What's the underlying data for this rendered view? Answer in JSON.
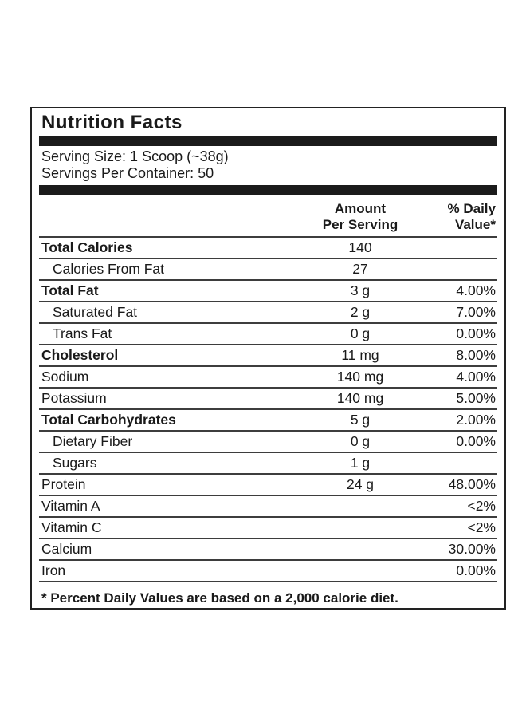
{
  "label": {
    "title": "Nutrition Facts",
    "serving_size": "Serving Size: 1 Scoop (~38g)",
    "servings_per_container": "Servings Per Container: 50",
    "columns": {
      "amount_header": "Amount\nPer Serving",
      "daily_value_header": "% Daily\nValue*"
    },
    "rows": [
      {
        "name": "Total Calories",
        "amount": "140",
        "dv": "",
        "bold": true,
        "indent": false
      },
      {
        "name": "Calories From Fat",
        "amount": "27",
        "dv": "",
        "bold": false,
        "indent": true
      },
      {
        "name": "Total Fat",
        "amount": "3 g",
        "dv": "4.00%",
        "bold": true,
        "indent": false
      },
      {
        "name": "Saturated Fat",
        "amount": "2 g",
        "dv": "7.00%",
        "bold": false,
        "indent": true
      },
      {
        "name": "Trans Fat",
        "amount": "0 g",
        "dv": "0.00%",
        "bold": false,
        "indent": true
      },
      {
        "name": "Cholesterol",
        "amount": "11 mg",
        "dv": "8.00%",
        "bold": true,
        "indent": false
      },
      {
        "name": "Sodium",
        "amount": "140 mg",
        "dv": "4.00%",
        "bold": false,
        "indent": false
      },
      {
        "name": "Potassium",
        "amount": "140 mg",
        "dv": "5.00%",
        "bold": false,
        "indent": false
      },
      {
        "name": "Total Carbohydrates",
        "amount": "5 g",
        "dv": "2.00%",
        "bold": true,
        "indent": false
      },
      {
        "name": "Dietary Fiber",
        "amount": "0 g",
        "dv": "0.00%",
        "bold": false,
        "indent": true
      },
      {
        "name": "Sugars",
        "amount": "1 g",
        "dv": "",
        "bold": false,
        "indent": true
      },
      {
        "name": "Protein",
        "amount": "24 g",
        "dv": "48.00%",
        "bold": false,
        "indent": false
      },
      {
        "name": "Vitamin A",
        "amount": "",
        "dv": "<2%",
        "bold": false,
        "indent": false
      },
      {
        "name": "Vitamin C",
        "amount": "",
        "dv": "<2%",
        "bold": false,
        "indent": false
      },
      {
        "name": "Calcium",
        "amount": "",
        "dv": "30.00%",
        "bold": false,
        "indent": false
      },
      {
        "name": "Iron",
        "amount": "",
        "dv": "0.00%",
        "bold": false,
        "indent": false
      }
    ],
    "footnote": "* Percent Daily Values are based on a 2,000 calorie diet.",
    "colors": {
      "text": "#1a1a1a",
      "bars": "#1b1b1b",
      "dividers": "#3d3d3d",
      "border": "#222222",
      "background": "#ffffff"
    }
  }
}
